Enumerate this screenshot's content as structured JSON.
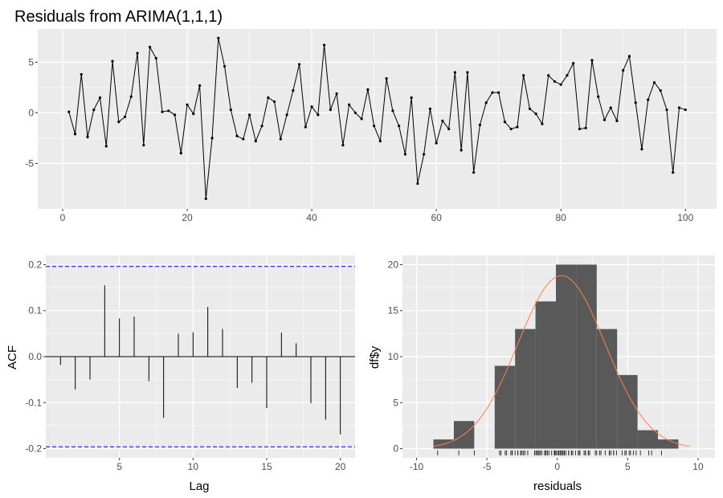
{
  "chart_data": [
    {
      "type": "line",
      "title": "Residuals from ARIMA(1,1,1)",
      "xlabel": "",
      "ylabel": "",
      "xlim": [
        -4,
        105
      ],
      "ylim": [
        -9.5,
        8.3
      ],
      "x_ticks": [
        0,
        20,
        40,
        60,
        80,
        100
      ],
      "y_ticks": [
        -5,
        0,
        5
      ],
      "grid": true,
      "series": [
        {
          "values": [
            0.1,
            -2.1,
            3.8,
            -2.4,
            0.3,
            1.5,
            -3.3,
            5.1,
            -0.9,
            -0.4,
            1.6,
            5.9,
            -3.2,
            6.5,
            5.4,
            0.1,
            0.2,
            -0.2,
            -4.0,
            0.8,
            -0.1,
            2.7,
            -8.5,
            -2.5,
            7.4,
            4.6,
            0.3,
            -2.3,
            -2.6,
            -0.2,
            -2.8,
            -1.3,
            1.5,
            1.1,
            -2.6,
            -0.2,
            2.2,
            4.8,
            -1.4,
            0.6,
            -0.2,
            6.7,
            0.3,
            1.9,
            -3.2,
            0.8,
            0.0,
            -0.6,
            2.3,
            -1.3,
            -2.8,
            3.4,
            0.2,
            -1.3,
            -4.1,
            1.5,
            -7.0,
            -4.1,
            0.4,
            -3.0,
            -0.8,
            -1.6,
            4.0,
            -3.7,
            4.0,
            -5.9,
            -1.2,
            1.0,
            2.0,
            2.0,
            -0.9,
            -1.6,
            -1.4,
            3.7,
            0.4,
            -0.1,
            -1.1,
            3.7,
            3.1,
            2.8,
            3.7,
            4.9,
            -1.6,
            -1.5,
            5.2,
            1.6,
            -0.7,
            0.5,
            -0.8,
            4.2,
            5.6,
            1.0,
            -3.6,
            1.3,
            3.0,
            2.2,
            0.3,
            -5.9,
            0.5,
            0.3
          ]
        }
      ]
    },
    {
      "type": "bar",
      "title": "",
      "xlabel": "Lag",
      "ylabel": "ACF",
      "xlim": [
        0.0,
        21.0
      ],
      "ylim": [
        -0.22,
        0.22
      ],
      "x_ticks": [
        5,
        10,
        15,
        20
      ],
      "y_ticks": [
        -0.2,
        -0.1,
        0.0,
        0.1,
        0.2
      ],
      "lags": [
        1,
        2,
        3,
        4,
        5,
        6,
        7,
        8,
        9,
        10,
        11,
        12,
        13,
        14,
        15,
        16,
        17,
        18,
        19,
        20
      ],
      "values": [
        -0.018,
        -0.071,
        -0.05,
        0.155,
        0.083,
        0.087,
        -0.053,
        -0.133,
        0.05,
        0.053,
        0.108,
        0.06,
        -0.068,
        -0.057,
        -0.112,
        0.052,
        0.029,
        -0.101,
        -0.137,
        -0.169
      ],
      "confidence_limits": [
        0.196,
        -0.196
      ],
      "grid": true
    },
    {
      "type": "histogram",
      "title": "",
      "xlabel": "residuals",
      "ylabel": "df$y",
      "xlim": [
        -11,
        11.2
      ],
      "ylim": [
        -1.0,
        21.0
      ],
      "x_ticks": [
        -10,
        -5,
        0,
        5,
        10
      ],
      "y_ticks": [
        0,
        5,
        10,
        15,
        20
      ],
      "bin_edges": [
        -8.8,
        -7.35,
        -5.9,
        -4.45,
        -3.0,
        -1.55,
        -0.1,
        1.35,
        2.8,
        4.25,
        5.7,
        7.15,
        8.6
      ],
      "counts": [
        1,
        3,
        0,
        9,
        13,
        16,
        20,
        20,
        13,
        8,
        2,
        1
      ],
      "density_curve": {
        "mean": 0.3,
        "sd": 3.1,
        "peak": 18.8,
        "x_range": [
          -8.8,
          9.4
        ]
      },
      "rug": [
        -8.5,
        -7.0,
        -5.9,
        -4.1,
        -4.0,
        -3.7,
        -3.6,
        -3.3,
        -3.2,
        -3.2,
        -3.0,
        -2.8,
        -2.8,
        -2.6,
        -2.6,
        -2.5,
        -2.4,
        -2.3,
        -2.1,
        -1.6,
        -1.6,
        -1.5,
        -1.4,
        -1.4,
        -1.3,
        -1.3,
        -1.3,
        -1.2,
        -1.1,
        -0.9,
        -0.9,
        -0.8,
        -0.8,
        -0.7,
        -0.6,
        -0.4,
        -0.2,
        -0.2,
        -0.2,
        -0.2,
        -0.1,
        -0.1,
        0.0,
        0.1,
        0.1,
        0.2,
        0.2,
        0.3,
        0.3,
        0.3,
        0.3,
        0.4,
        0.4,
        0.5,
        0.5,
        0.6,
        0.8,
        0.8,
        1.0,
        1.0,
        1.1,
        1.3,
        1.5,
        1.5,
        1.5,
        1.6,
        1.6,
        1.9,
        2.0,
        2.0,
        2.2,
        2.2,
        2.3,
        2.7,
        2.8,
        3.0,
        3.1,
        3.4,
        3.7,
        3.7,
        3.7,
        3.8,
        4.0,
        4.0,
        4.2,
        4.6,
        4.8,
        4.9,
        5.1,
        5.2,
        5.4,
        5.6,
        5.9,
        6.5,
        6.7,
        7.4
      ],
      "grid": true
    }
  ],
  "colors": {
    "panel_bg": "#ebebeb",
    "grid_major": "#ffffff",
    "line": "#000000",
    "ci_line": "#0000ff",
    "bar_fill": "#595959",
    "density": "#ff7f50"
  }
}
